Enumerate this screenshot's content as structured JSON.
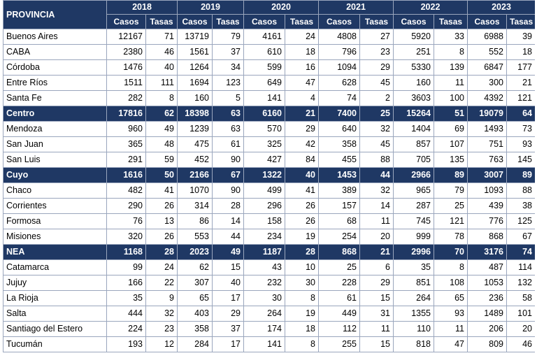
{
  "header": {
    "province_label": "PROVINCIA",
    "years": [
      "2018",
      "2019",
      "2020",
      "2021",
      "2022",
      "2023"
    ],
    "casos_label": "Casos",
    "tasas_label": "Tasas"
  },
  "rows": [
    {
      "name": "Buenos Aires",
      "region": false,
      "values": [
        "12167",
        "71",
        "13719",
        "79",
        "4161",
        "24",
        "4808",
        "27",
        "5920",
        "33",
        "6988",
        "39"
      ]
    },
    {
      "name": "CABA",
      "region": false,
      "values": [
        "2380",
        "46",
        "1561",
        "37",
        "610",
        "18",
        "796",
        "23",
        "251",
        "8",
        "552",
        "18"
      ]
    },
    {
      "name": "Córdoba",
      "region": false,
      "values": [
        "1476",
        "40",
        "1264",
        "34",
        "599",
        "16",
        "1094",
        "29",
        "5330",
        "139",
        "6847",
        "177"
      ]
    },
    {
      "name": "Entre Ríos",
      "region": false,
      "values": [
        "1511",
        "111",
        "1694",
        "123",
        "649",
        "47",
        "628",
        "45",
        "160",
        "11",
        "300",
        "21"
      ]
    },
    {
      "name": "Santa Fe",
      "region": false,
      "values": [
        "282",
        "8",
        "160",
        "5",
        "141",
        "4",
        "74",
        "2",
        "3603",
        "100",
        "4392",
        "121"
      ]
    },
    {
      "name": "Centro",
      "region": true,
      "values": [
        "17816",
        "62",
        "18398",
        "63",
        "6160",
        "21",
        "7400",
        "25",
        "15264",
        "51",
        "19079",
        "64"
      ]
    },
    {
      "name": "Mendoza",
      "region": false,
      "values": [
        "960",
        "49",
        "1239",
        "63",
        "570",
        "29",
        "640",
        "32",
        "1404",
        "69",
        "1493",
        "73"
      ]
    },
    {
      "name": "San Juan",
      "region": false,
      "values": [
        "365",
        "48",
        "475",
        "61",
        "325",
        "42",
        "358",
        "45",
        "857",
        "107",
        "751",
        "93"
      ]
    },
    {
      "name": "San Luis",
      "region": false,
      "values": [
        "291",
        "59",
        "452",
        "90",
        "427",
        "84",
        "455",
        "88",
        "705",
        "135",
        "763",
        "145"
      ]
    },
    {
      "name": "Cuyo",
      "region": true,
      "values": [
        "1616",
        "50",
        "2166",
        "67",
        "1322",
        "40",
        "1453",
        "44",
        "2966",
        "89",
        "3007",
        "89"
      ]
    },
    {
      "name": "Chaco",
      "region": false,
      "values": [
        "482",
        "41",
        "1070",
        "90",
        "499",
        "41",
        "389",
        "32",
        "965",
        "79",
        "1093",
        "88"
      ]
    },
    {
      "name": "Corrientes",
      "region": false,
      "values": [
        "290",
        "26",
        "314",
        "28",
        "296",
        "26",
        "157",
        "14",
        "287",
        "25",
        "439",
        "38"
      ]
    },
    {
      "name": "Formosa",
      "region": false,
      "values": [
        "76",
        "13",
        "86",
        "14",
        "158",
        "26",
        "68",
        "11",
        "745",
        "121",
        "776",
        "125"
      ]
    },
    {
      "name": "Misiones",
      "region": false,
      "values": [
        "320",
        "26",
        "553",
        "44",
        "234",
        "19",
        "254",
        "20",
        "999",
        "78",
        "868",
        "67"
      ]
    },
    {
      "name": "NEA",
      "region": true,
      "values": [
        "1168",
        "28",
        "2023",
        "49",
        "1187",
        "28",
        "868",
        "21",
        "2996",
        "70",
        "3176",
        "74"
      ]
    },
    {
      "name": "Catamarca",
      "region": false,
      "values": [
        "99",
        "24",
        "62",
        "15",
        "43",
        "10",
        "25",
        "6",
        "35",
        "8",
        "487",
        "114"
      ]
    },
    {
      "name": "Jujuy",
      "region": false,
      "values": [
        "166",
        "22",
        "307",
        "40",
        "232",
        "30",
        "228",
        "29",
        "851",
        "108",
        "1053",
        "132"
      ]
    },
    {
      "name": "La Rioja",
      "region": false,
      "values": [
        "35",
        "9",
        "65",
        "17",
        "30",
        "8",
        "61",
        "15",
        "264",
        "65",
        "236",
        "58"
      ]
    },
    {
      "name": "Salta",
      "region": false,
      "values": [
        "444",
        "32",
        "403",
        "29",
        "264",
        "19",
        "449",
        "31",
        "1355",
        "93",
        "1489",
        "101"
      ]
    },
    {
      "name": "Santiago del Estero",
      "region": false,
      "values": [
        "224",
        "23",
        "358",
        "37",
        "174",
        "18",
        "112",
        "11",
        "110",
        "11",
        "206",
        "20"
      ]
    },
    {
      "name": "Tucumán",
      "region": false,
      "values": [
        "193",
        "12",
        "284",
        "17",
        "141",
        "8",
        "255",
        "15",
        "818",
        "47",
        "809",
        "46"
      ]
    }
  ]
}
